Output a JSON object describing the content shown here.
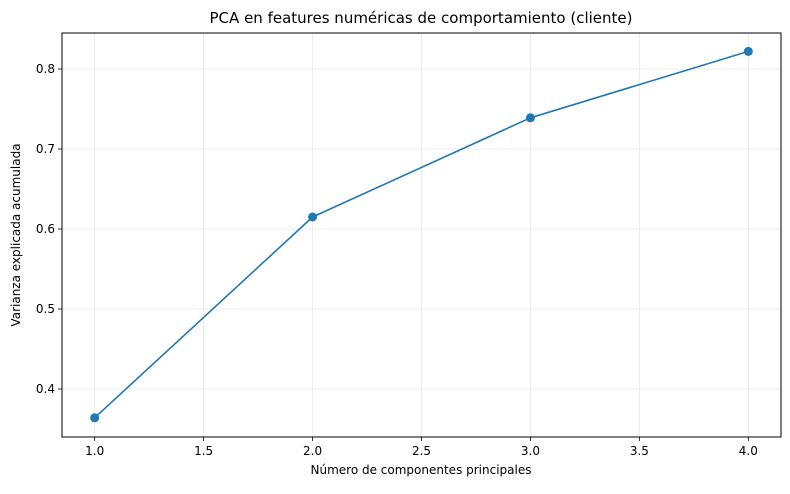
{
  "chart_data": {
    "type": "line",
    "title": "PCA en features numéricas de comportamiento (cliente)",
    "xlabel": "Número de componentes principales",
    "ylabel": "Varianza explicada acumulada",
    "x": [
      1,
      2,
      3,
      4
    ],
    "series": [
      {
        "values": [
          0.364,
          0.615,
          0.739,
          0.822
        ],
        "color": "#1f77b4",
        "marker": "circle"
      }
    ],
    "xlim": [
      0.85,
      4.15
    ],
    "ylim": [
      0.34,
      0.845
    ],
    "xticks": [
      1.0,
      1.5,
      2.0,
      2.5,
      3.0,
      3.5,
      4.0
    ],
    "xtick_labels": [
      "1.0",
      "1.5",
      "2.0",
      "2.5",
      "3.0",
      "3.5",
      "4.0"
    ],
    "yticks": [
      0.4,
      0.5,
      0.6,
      0.7,
      0.8
    ],
    "ytick_labels": [
      "0.4",
      "0.5",
      "0.6",
      "0.7",
      "0.8"
    ],
    "grid": true,
    "legend": "none"
  }
}
